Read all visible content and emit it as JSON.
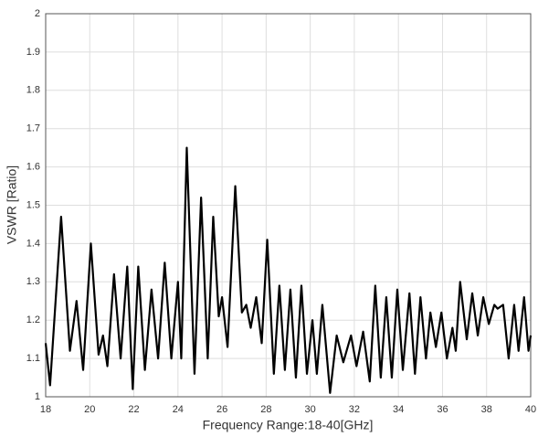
{
  "chart_data": {
    "type": "line",
    "xlabel": "Frequency Range:18-40[GHz]",
    "ylabel": "VSWR [Ratio]",
    "xlim": [
      18,
      40
    ],
    "ylim": [
      1,
      2
    ],
    "xticks": [
      18,
      20,
      22,
      24,
      26,
      28,
      30,
      32,
      34,
      36,
      38,
      40
    ],
    "yticks": [
      1,
      1.1,
      1.2,
      1.3,
      1.4,
      1.5,
      1.6,
      1.7,
      1.8,
      1.9,
      2
    ],
    "grid": true,
    "x": [
      18,
      18.2,
      18.7,
      19.1,
      19.4,
      19.7,
      20.05,
      20.4,
      20.6,
      20.8,
      21.1,
      21.4,
      21.7,
      21.95,
      22.2,
      22.5,
      22.8,
      23.1,
      23.4,
      23.7,
      24.0,
      24.15,
      24.4,
      24.75,
      25.05,
      25.35,
      25.6,
      25.85,
      26.0,
      26.25,
      26.6,
      26.9,
      27.1,
      27.3,
      27.55,
      27.8,
      28.05,
      28.35,
      28.6,
      28.85,
      29.1,
      29.35,
      29.6,
      29.85,
      30.1,
      30.3,
      30.55,
      30.9,
      31.2,
      31.5,
      31.85,
      32.1,
      32.4,
      32.7,
      32.95,
      33.2,
      33.45,
      33.7,
      33.95,
      34.2,
      34.5,
      34.75,
      35.0,
      35.25,
      35.45,
      35.7,
      35.95,
      36.2,
      36.45,
      36.6,
      36.8,
      37.1,
      37.35,
      37.6,
      37.85,
      38.1,
      38.35,
      38.5,
      38.75,
      39.0,
      39.25,
      39.45,
      39.7,
      39.9,
      40.0
    ],
    "series": [
      {
        "color": "#000000",
        "values": [
          1.14,
          1.03,
          1.47,
          1.12,
          1.25,
          1.07,
          1.4,
          1.11,
          1.16,
          1.08,
          1.32,
          1.1,
          1.34,
          1.02,
          1.34,
          1.07,
          1.28,
          1.1,
          1.35,
          1.1,
          1.3,
          1.1,
          1.65,
          1.06,
          1.52,
          1.1,
          1.47,
          1.21,
          1.26,
          1.13,
          1.55,
          1.22,
          1.24,
          1.18,
          1.26,
          1.14,
          1.41,
          1.06,
          1.29,
          1.07,
          1.28,
          1.05,
          1.29,
          1.06,
          1.2,
          1.06,
          1.24,
          1.01,
          1.16,
          1.09,
          1.16,
          1.08,
          1.17,
          1.04,
          1.29,
          1.05,
          1.26,
          1.05,
          1.28,
          1.07,
          1.27,
          1.06,
          1.26,
          1.1,
          1.22,
          1.13,
          1.22,
          1.1,
          1.18,
          1.12,
          1.3,
          1.15,
          1.27,
          1.16,
          1.26,
          1.19,
          1.24,
          1.23,
          1.24,
          1.1,
          1.24,
          1.12,
          1.26,
          1.12,
          1.16
        ]
      }
    ]
  }
}
